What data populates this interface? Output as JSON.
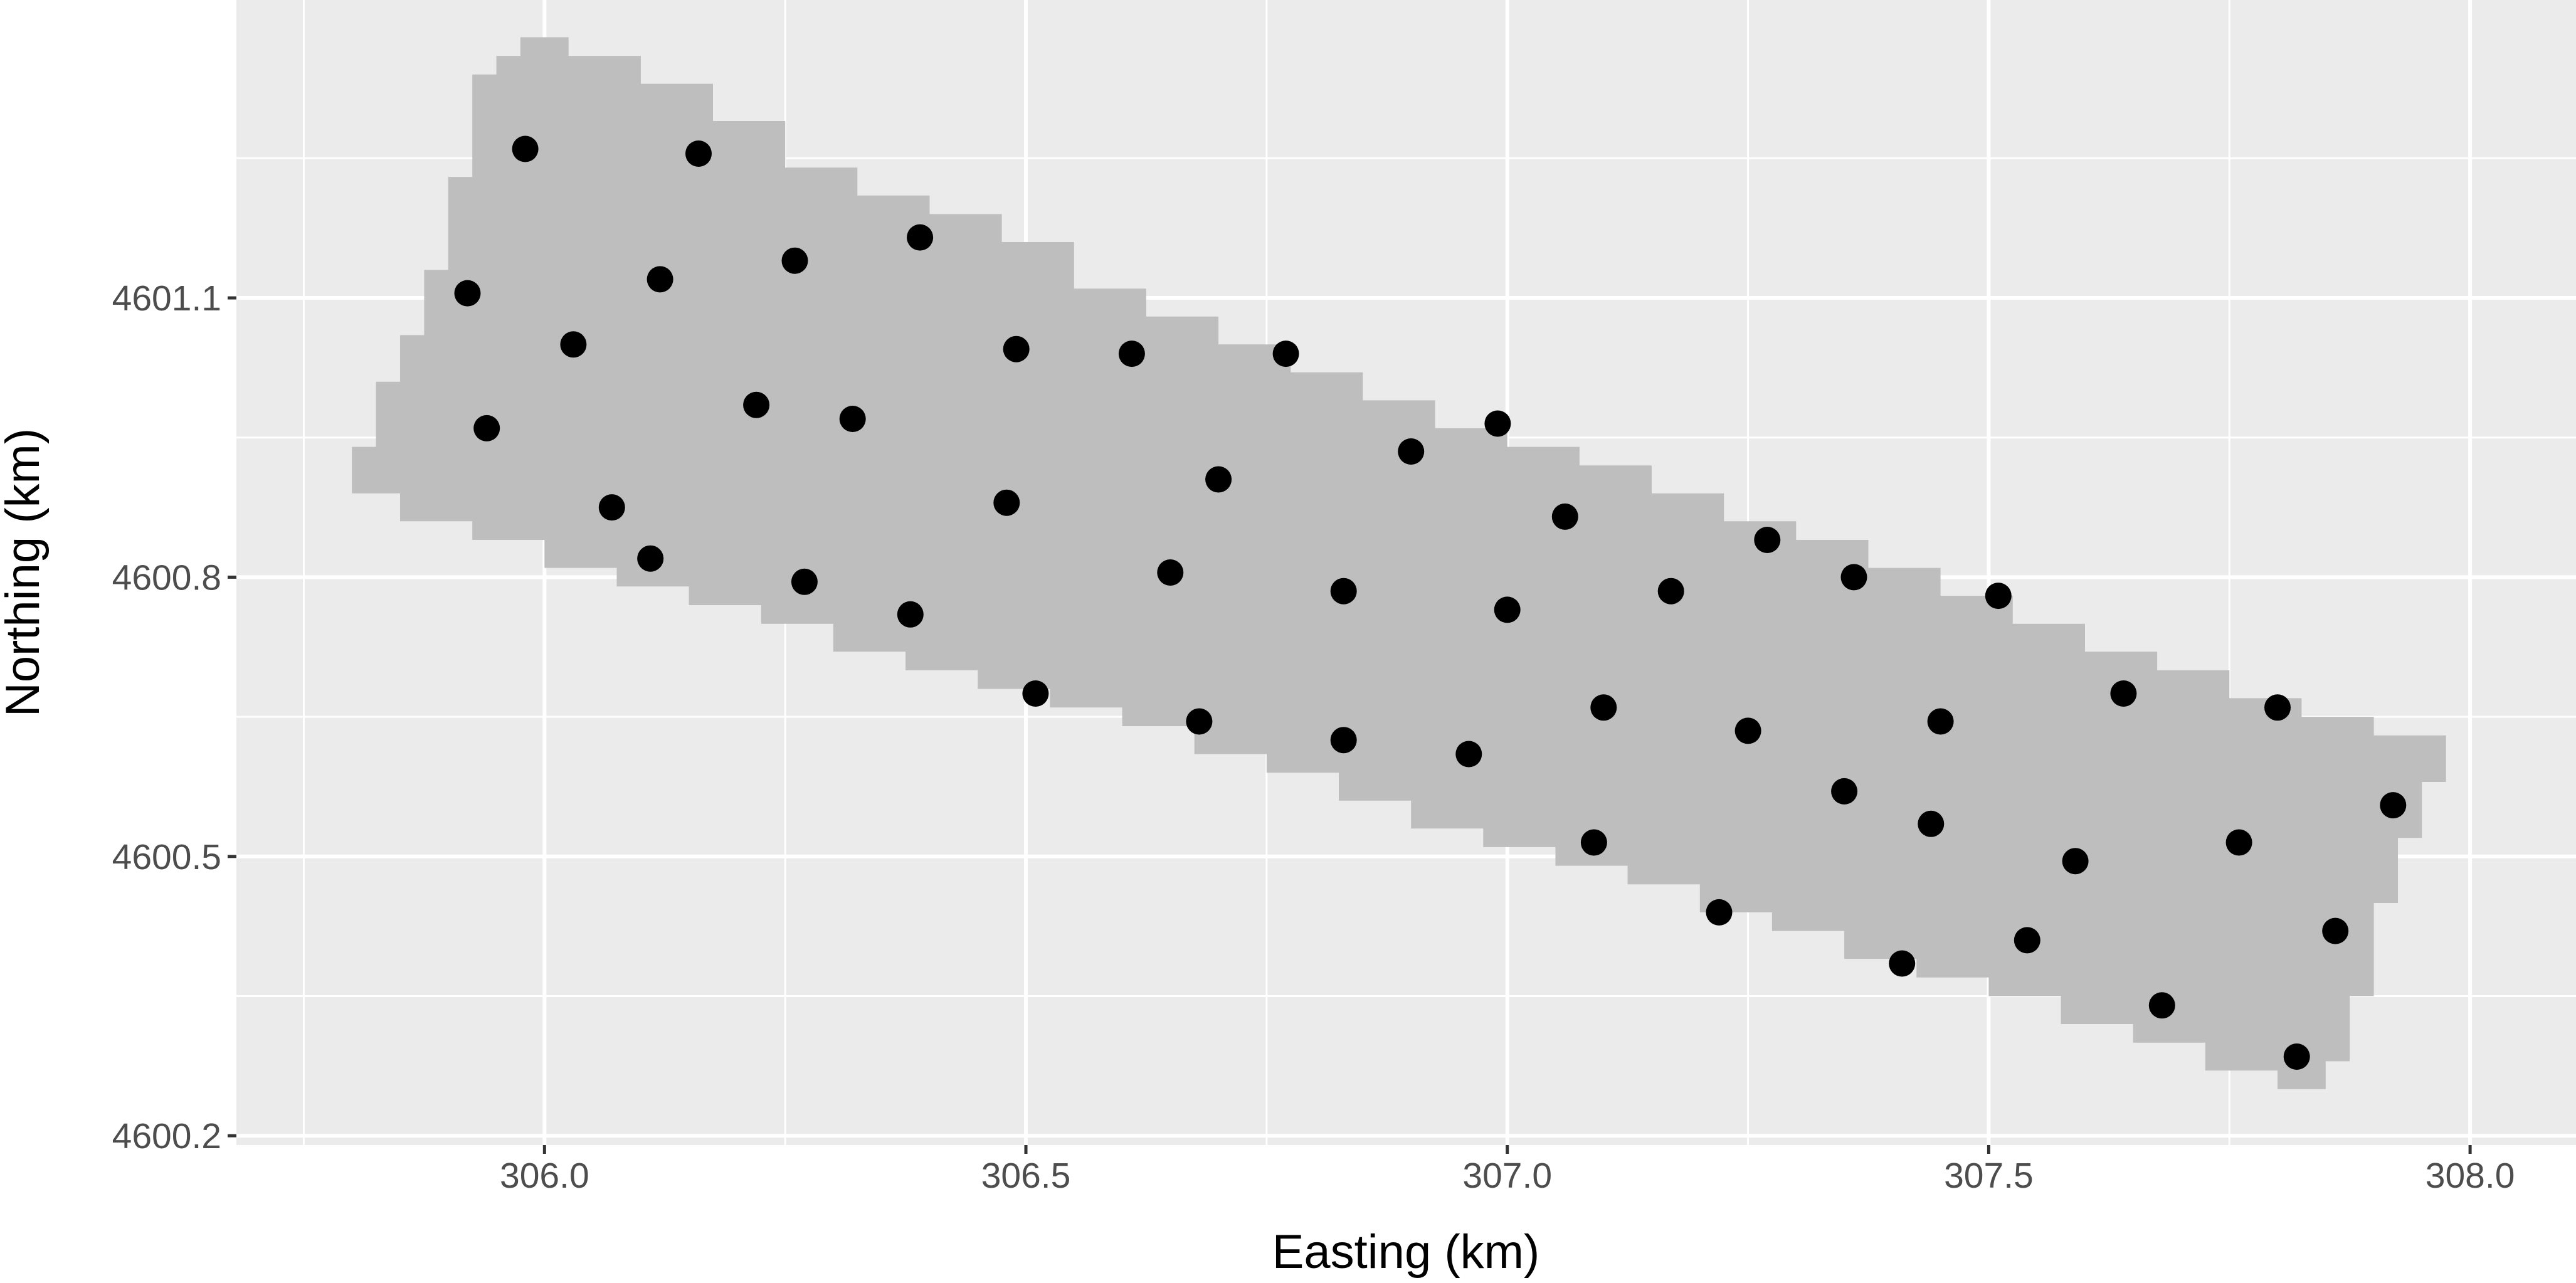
{
  "chart_data": {
    "type": "scatter",
    "title": "",
    "xlabel": "Easting (km)",
    "ylabel": "Northing (km)",
    "xlim": [
      305.68,
      308.11
    ],
    "ylim": [
      4600.19,
      4601.42
    ],
    "x_ticks": [
      306.0,
      306.5,
      307.0,
      307.5,
      308.0
    ],
    "x_tick_labels": [
      "306.0",
      "306.5",
      "307.0",
      "307.5",
      "308.0"
    ],
    "y_ticks": [
      4600.2,
      4600.5,
      4600.8,
      4601.1
    ],
    "y_tick_labels": [
      "4600.2",
      "4600.5",
      "4600.8",
      "4601.1"
    ],
    "grid": true,
    "colors": {
      "panel_background": "#EBEBEB",
      "grid_line": "#FFFFFF",
      "region_fill": "#BEBEBE",
      "points": "#000000"
    },
    "region_outline": [
      [
        305.8,
        4600.89
      ],
      [
        305.8,
        4600.94
      ],
      [
        305.825,
        4600.94
      ],
      [
        305.825,
        4601.01
      ],
      [
        305.85,
        4601.01
      ],
      [
        305.85,
        4601.06
      ],
      [
        305.875,
        4601.06
      ],
      [
        305.875,
        4601.13
      ],
      [
        305.9,
        4601.13
      ],
      [
        305.9,
        4601.23
      ],
      [
        305.925,
        4601.23
      ],
      [
        305.925,
        4601.34
      ],
      [
        305.95,
        4601.34
      ],
      [
        305.95,
        4601.36
      ],
      [
        305.975,
        4601.36
      ],
      [
        305.975,
        4601.38
      ],
      [
        306.025,
        4601.38
      ],
      [
        306.025,
        4601.36
      ],
      [
        306.1,
        4601.36
      ],
      [
        306.1,
        4601.33
      ],
      [
        306.175,
        4601.33
      ],
      [
        306.175,
        4601.29
      ],
      [
        306.25,
        4601.29
      ],
      [
        306.25,
        4601.24
      ],
      [
        306.325,
        4601.24
      ],
      [
        306.325,
        4601.21
      ],
      [
        306.4,
        4601.21
      ],
      [
        306.4,
        4601.19
      ],
      [
        306.475,
        4601.19
      ],
      [
        306.475,
        4601.16
      ],
      [
        306.55,
        4601.16
      ],
      [
        306.55,
        4601.11
      ],
      [
        306.625,
        4601.11
      ],
      [
        306.625,
        4601.08
      ],
      [
        306.7,
        4601.08
      ],
      [
        306.7,
        4601.05
      ],
      [
        306.775,
        4601.05
      ],
      [
        306.775,
        4601.02
      ],
      [
        306.85,
        4601.02
      ],
      [
        306.85,
        4600.99
      ],
      [
        306.925,
        4600.99
      ],
      [
        306.925,
        4600.96
      ],
      [
        307.0,
        4600.96
      ],
      [
        307.0,
        4600.94
      ],
      [
        307.075,
        4600.94
      ],
      [
        307.075,
        4600.92
      ],
      [
        307.15,
        4600.92
      ],
      [
        307.15,
        4600.89
      ],
      [
        307.225,
        4600.89
      ],
      [
        307.225,
        4600.86
      ],
      [
        307.3,
        4600.86
      ],
      [
        307.3,
        4600.84
      ],
      [
        307.375,
        4600.84
      ],
      [
        307.375,
        4600.81
      ],
      [
        307.45,
        4600.81
      ],
      [
        307.45,
        4600.78
      ],
      [
        307.525,
        4600.78
      ],
      [
        307.525,
        4600.75
      ],
      [
        307.6,
        4600.75
      ],
      [
        307.6,
        4600.72
      ],
      [
        307.675,
        4600.72
      ],
      [
        307.675,
        4600.7
      ],
      [
        307.75,
        4600.7
      ],
      [
        307.75,
        4600.67
      ],
      [
        307.825,
        4600.67
      ],
      [
        307.825,
        4600.65
      ],
      [
        307.9,
        4600.65
      ],
      [
        307.9,
        4600.63
      ],
      [
        307.975,
        4600.63
      ],
      [
        307.975,
        4600.58
      ],
      [
        307.95,
        4600.58
      ],
      [
        307.95,
        4600.52
      ],
      [
        307.925,
        4600.52
      ],
      [
        307.925,
        4600.45
      ],
      [
        307.9,
        4600.45
      ],
      [
        307.9,
        4600.35
      ],
      [
        307.875,
        4600.35
      ],
      [
        307.875,
        4600.28
      ],
      [
        307.85,
        4600.28
      ],
      [
        307.85,
        4600.25
      ],
      [
        307.8,
        4600.25
      ],
      [
        307.8,
        4600.27
      ],
      [
        307.725,
        4600.27
      ],
      [
        307.725,
        4600.3
      ],
      [
        307.65,
        4600.3
      ],
      [
        307.65,
        4600.32
      ],
      [
        307.575,
        4600.32
      ],
      [
        307.575,
        4600.35
      ],
      [
        307.5,
        4600.35
      ],
      [
        307.5,
        4600.37
      ],
      [
        307.425,
        4600.37
      ],
      [
        307.425,
        4600.39
      ],
      [
        307.35,
        4600.39
      ],
      [
        307.35,
        4600.42
      ],
      [
        307.275,
        4600.42
      ],
      [
        307.275,
        4600.44
      ],
      [
        307.2,
        4600.44
      ],
      [
        307.2,
        4600.47
      ],
      [
        307.125,
        4600.47
      ],
      [
        307.125,
        4600.49
      ],
      [
        307.05,
        4600.49
      ],
      [
        307.05,
        4600.51
      ],
      [
        306.975,
        4600.51
      ],
      [
        306.975,
        4600.53
      ],
      [
        306.9,
        4600.53
      ],
      [
        306.9,
        4600.56
      ],
      [
        306.825,
        4600.56
      ],
      [
        306.825,
        4600.59
      ],
      [
        306.75,
        4600.59
      ],
      [
        306.75,
        4600.61
      ],
      [
        306.675,
        4600.61
      ],
      [
        306.675,
        4600.64
      ],
      [
        306.6,
        4600.64
      ],
      [
        306.6,
        4600.66
      ],
      [
        306.525,
        4600.66
      ],
      [
        306.525,
        4600.68
      ],
      [
        306.45,
        4600.68
      ],
      [
        306.45,
        4600.7
      ],
      [
        306.375,
        4600.7
      ],
      [
        306.375,
        4600.72
      ],
      [
        306.3,
        4600.72
      ],
      [
        306.3,
        4600.75
      ],
      [
        306.225,
        4600.75
      ],
      [
        306.225,
        4600.77
      ],
      [
        306.15,
        4600.77
      ],
      [
        306.15,
        4600.79
      ],
      [
        306.075,
        4600.79
      ],
      [
        306.075,
        4600.81
      ],
      [
        306.0,
        4600.81
      ],
      [
        306.0,
        4600.84
      ],
      [
        305.925,
        4600.84
      ],
      [
        305.925,
        4600.86
      ],
      [
        305.85,
        4600.86
      ],
      [
        305.85,
        4600.89
      ]
    ],
    "series": [
      {
        "x": [
          305.98,
          306.16,
          305.92,
          306.12,
          306.26,
          306.39,
          306.03,
          306.49,
          306.61,
          306.77,
          305.94,
          306.22,
          306.32,
          306.99,
          306.9,
          306.7,
          306.07,
          306.48,
          307.06,
          306.11,
          307.27,
          306.27,
          306.65,
          307.36,
          306.83,
          307.17,
          306.38,
          307.0,
          307.51,
          306.51,
          307.64,
          307.1,
          307.8,
          306.68,
          307.45,
          307.25,
          306.83,
          306.96,
          307.35,
          307.92,
          307.44,
          307.09,
          307.76,
          307.59,
          307.22,
          307.86,
          307.54,
          307.41,
          307.68,
          307.82
        ],
        "y": [
          4601.26,
          4601.255,
          4601.105,
          4601.12,
          4601.14,
          4601.165,
          4601.05,
          4601.045,
          4601.04,
          4601.04,
          4600.96,
          4600.985,
          4600.97,
          4600.965,
          4600.935,
          4600.905,
          4600.875,
          4600.88,
          4600.865,
          4600.82,
          4600.84,
          4600.795,
          4600.805,
          4600.8,
          4600.785,
          4600.785,
          4600.76,
          4600.765,
          4600.78,
          4600.675,
          4600.675,
          4600.66,
          4600.66,
          4600.645,
          4600.645,
          4600.635,
          4600.625,
          4600.61,
          4600.57,
          4600.555,
          4600.535,
          4600.515,
          4600.515,
          4600.495,
          4600.44,
          4600.42,
          4600.41,
          4600.385,
          4600.34,
          4600.285
        ]
      }
    ]
  }
}
